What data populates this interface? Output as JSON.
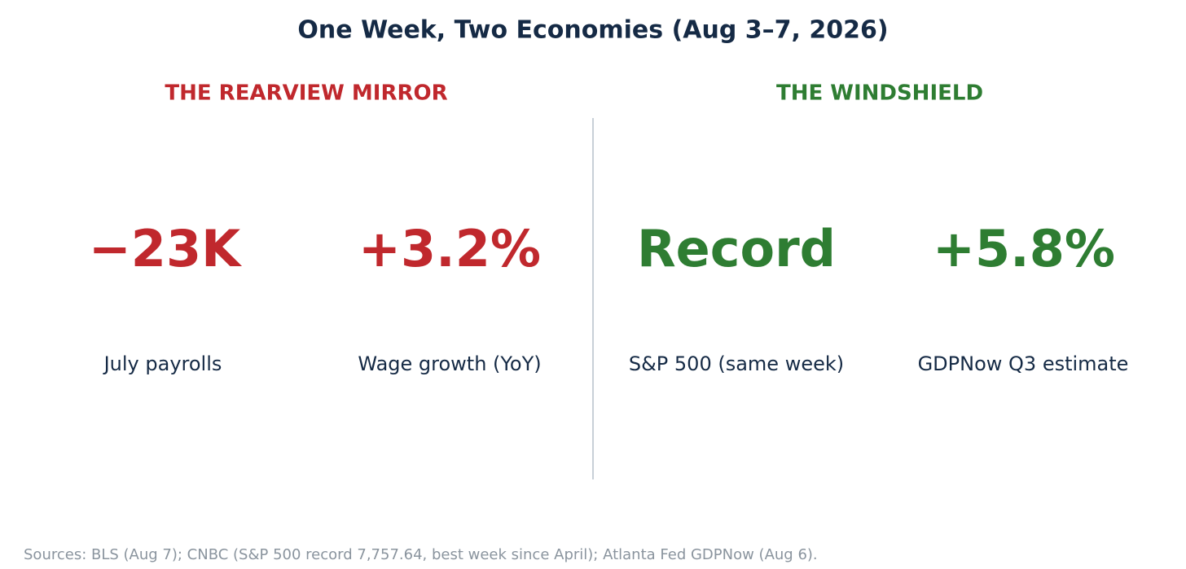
{
  "title": "One Week, Two Economies (Aug 3–7, 2026)",
  "sections": [
    {
      "heading": "THE REARVIEW MIRROR",
      "metrics": [
        {
          "value": "−23K",
          "label": "July payrolls"
        },
        {
          "value": "+3.2%",
          "label": "Wage growth (YoY)"
        }
      ]
    },
    {
      "heading": "THE WINDSHIELD",
      "metrics": [
        {
          "value": "Record",
          "label": "S&P 500 (same week)"
        },
        {
          "value": "+5.8%",
          "label": "GDPNow Q3 estimate"
        }
      ]
    }
  ],
  "footer": "Sources: BLS (Aug 7); CNBC (S&P 500 record 7,757.64, best week since April); Atlanta Fed GDPNow (Aug 6)."
}
